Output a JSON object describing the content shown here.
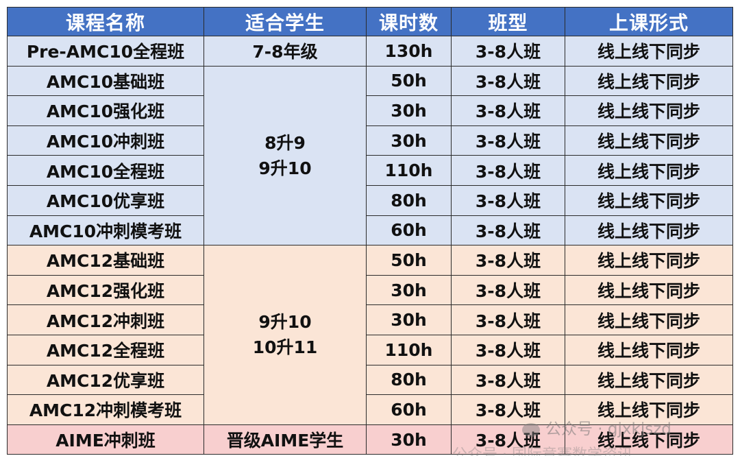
{
  "headers": [
    "课程名称",
    "适合学生",
    "课时数",
    "班型",
    "上课形式"
  ],
  "rows": [
    {
      "name": "Pre-AMC10全程班",
      "hours": "130h",
      "size": "3-8人班",
      "format": "线上线下同步"
    },
    {
      "name": "AMC10基础班",
      "hours": "50h",
      "size": "3-8人班",
      "format": "线上线下同步"
    },
    {
      "name": "AMC10强化班",
      "hours": "30h",
      "size": "3-8人班",
      "format": "线上线下同步"
    },
    {
      "name": "AMC10冲刺班",
      "hours": "30h",
      "size": "3-8人班",
      "format": "线上线下同步"
    },
    {
      "name": "AMC10全程班",
      "hours": "110h",
      "size": "3-8人班",
      "format": "线上线下同步"
    },
    {
      "name": "AMC10优享班",
      "hours": "80h",
      "size": "3-8人班",
      "format": "线上线下同步"
    },
    {
      "name": "AMC10冲刺模考班",
      "hours": "60h",
      "size": "3-8人班",
      "format": "线上线下同步"
    },
    {
      "name": "AMC12基础班",
      "hours": "50h",
      "size": "3-8人班",
      "format": "线上线下同步"
    },
    {
      "name": "AMC12强化班",
      "hours": "30h",
      "size": "3-8人班",
      "format": "线上线下同步"
    },
    {
      "name": "AMC12冲刺班",
      "hours": "30h",
      "size": "3-8人班",
      "format": "线上线下同步"
    },
    {
      "name": "AMC12全程班",
      "hours": "110h",
      "size": "3-8人班",
      "format": "线上线下同步"
    },
    {
      "name": "AMC12优享班",
      "hours": "80h",
      "size": "3-8人班",
      "format": "线上线下同步"
    },
    {
      "name": "AMC12冲刺模考班",
      "hours": "60h",
      "size": "3-8人班",
      "format": "线上线下同步"
    },
    {
      "name": "AIME冲刺班",
      "hours": "30h",
      "size": "3-8人班",
      "format": "线上线下同步"
    }
  ],
  "students": {
    "pre": "7-8年级",
    "amc10": [
      "8升9",
      "9升10"
    ],
    "amc12": [
      "9升10",
      "10升11"
    ],
    "aime": "晋级AIME学生"
  },
  "watermark": {
    "text": "公众号 · gjxkjszd",
    "partial": "公众号 · 国际竞赛数学资讯"
  },
  "colors": {
    "header": "#4472c4",
    "amc10_row": "#dae3f3",
    "amc12_row": "#fbe5d6",
    "aime_row": "#f8cfcf"
  }
}
